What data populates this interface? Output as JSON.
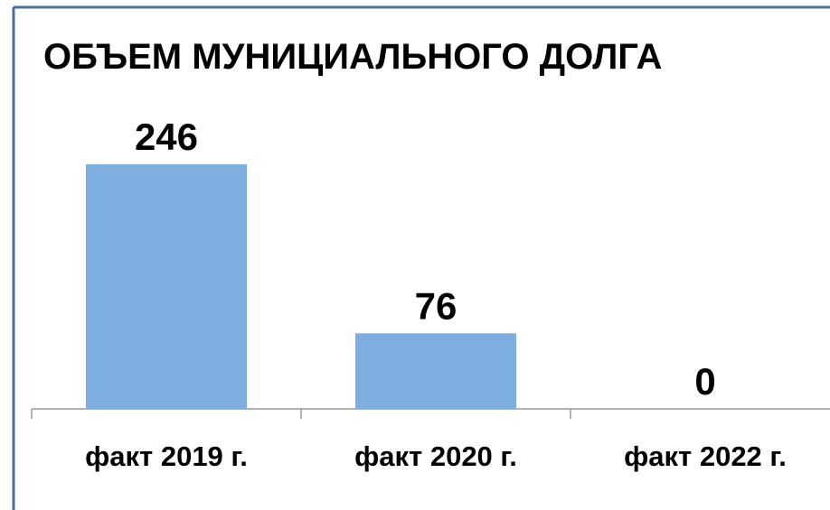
{
  "chart_data": {
    "type": "bar",
    "title": "ОБЪЕМ МУНИЦИАЛЬНОГО ДОЛГА",
    "categories": [
      "факт 2019 г.",
      "факт 2020 г.",
      "факт 2022 г."
    ],
    "values": [
      246,
      76,
      0
    ],
    "color": "#7eaedf"
  }
}
